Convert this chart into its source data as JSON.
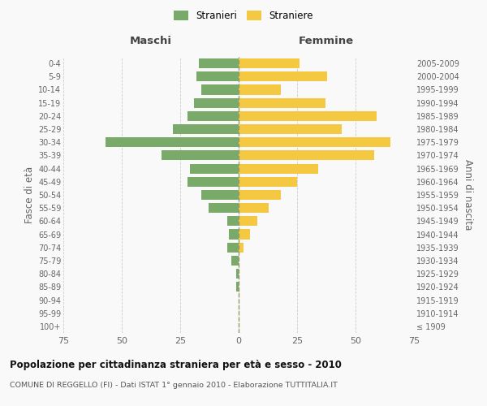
{
  "age_groups": [
    "100+",
    "95-99",
    "90-94",
    "85-89",
    "80-84",
    "75-79",
    "70-74",
    "65-69",
    "60-64",
    "55-59",
    "50-54",
    "45-49",
    "40-44",
    "35-39",
    "30-34",
    "25-29",
    "20-24",
    "15-19",
    "10-14",
    "5-9",
    "0-4"
  ],
  "birth_years": [
    "≤ 1909",
    "1910-1914",
    "1915-1919",
    "1920-1924",
    "1925-1929",
    "1930-1934",
    "1935-1939",
    "1940-1944",
    "1945-1949",
    "1950-1954",
    "1955-1959",
    "1960-1964",
    "1965-1969",
    "1970-1974",
    "1975-1979",
    "1980-1984",
    "1985-1989",
    "1990-1994",
    "1995-1999",
    "2000-2004",
    "2005-2009"
  ],
  "maschi": [
    0,
    0,
    0,
    1,
    1,
    3,
    5,
    4,
    5,
    13,
    16,
    22,
    21,
    33,
    57,
    28,
    22,
    19,
    16,
    18,
    17
  ],
  "femmine": [
    0,
    0,
    0,
    0,
    0,
    0,
    2,
    5,
    8,
    13,
    18,
    25,
    34,
    58,
    65,
    44,
    59,
    37,
    18,
    38,
    26
  ],
  "maschi_color": "#7aaa6a",
  "femmine_color": "#f5c842",
  "title": "Popolazione per cittadinanza straniera per età e sesso - 2010",
  "subtitle": "COMUNE DI REGGELLO (FI) - Dati ISTAT 1° gennaio 2010 - Elaborazione TUTTITALIA.IT",
  "ylabel_left": "Fasce di età",
  "ylabel_right": "Anni di nascita",
  "xlabel_left": "Maschi",
  "xlabel_right": "Femmine",
  "xlim": 75,
  "background_color": "#f9f9f9",
  "grid_color": "#cccccc",
  "dashed_line_color": "#999966"
}
